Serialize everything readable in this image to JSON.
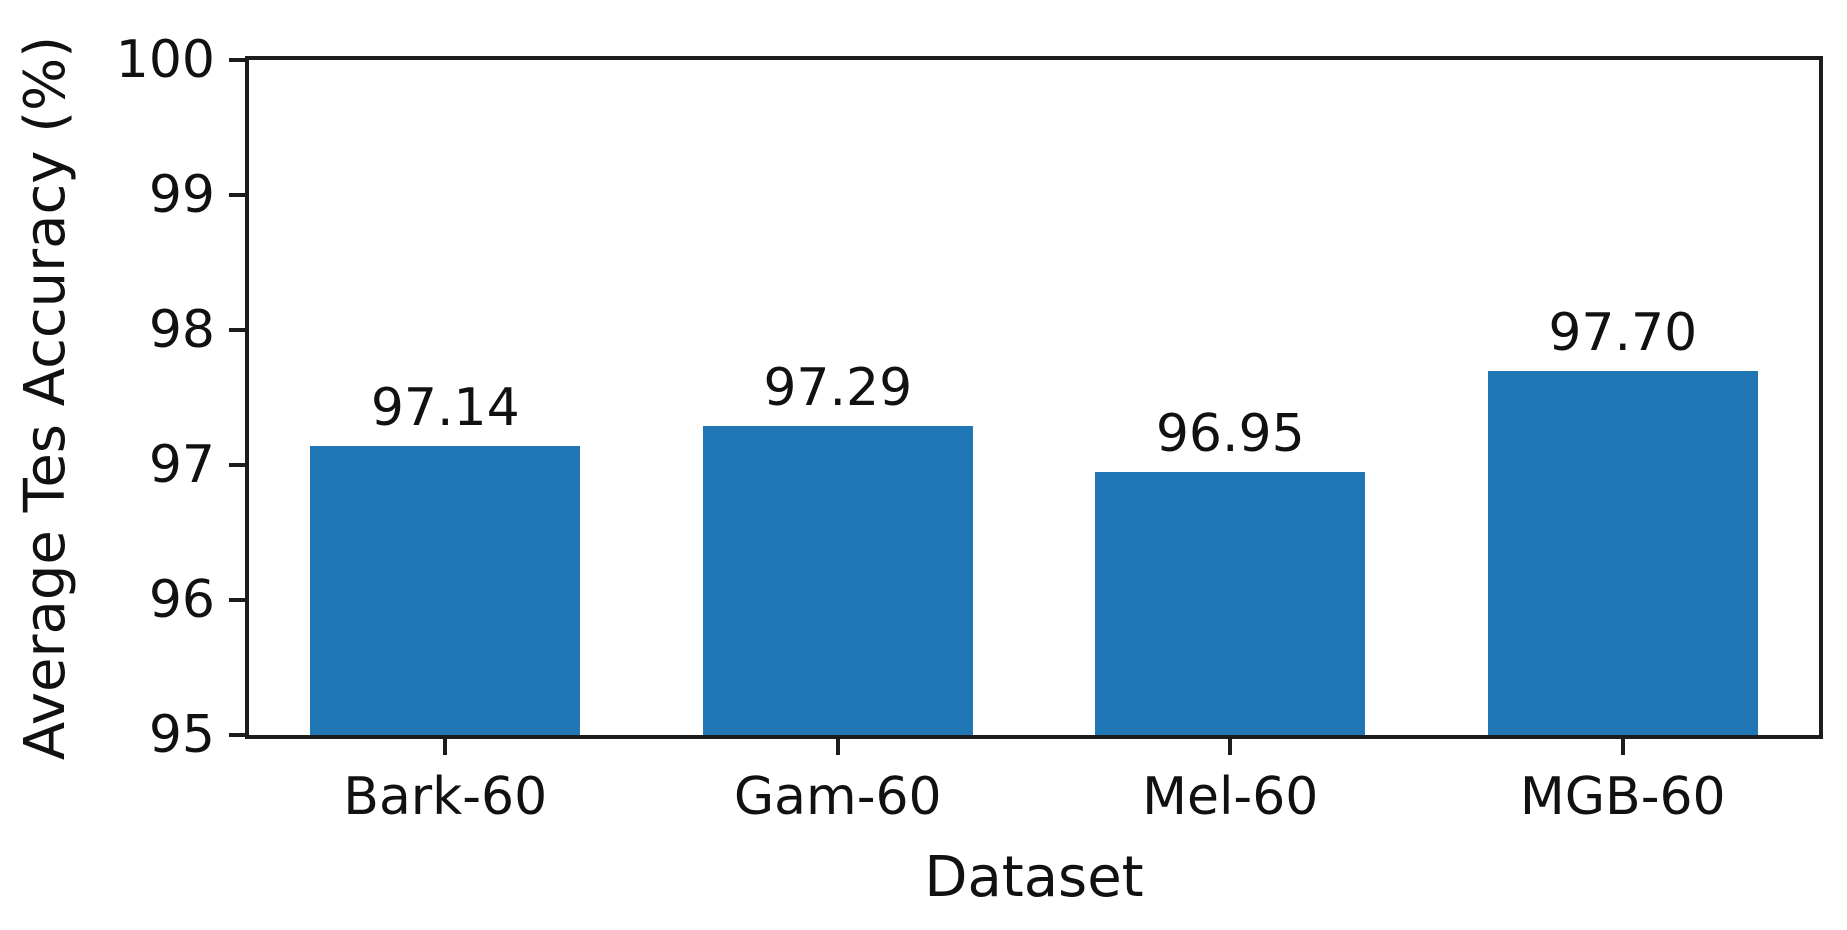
{
  "chart_data": {
    "type": "bar",
    "categories": [
      "Bark-60",
      "Gam-60",
      "Mel-60",
      "MGB-60"
    ],
    "values": [
      97.14,
      97.29,
      96.95,
      97.7
    ],
    "value_labels": [
      "97.14",
      "97.29",
      "96.95",
      "97.70"
    ],
    "title": "",
    "xlabel": "Dataset",
    "ylabel": "Average Tes Accuracy (%)",
    "ylim": [
      95,
      100
    ],
    "yticks": [
      95,
      96,
      97,
      98,
      99,
      100
    ],
    "grid": false,
    "legend": "none",
    "bar_color": "#2176b5"
  },
  "colors": {
    "bar": "#2176b5",
    "spine": "#1c1c1c",
    "text": "#111111",
    "background": "#ffffff"
  }
}
